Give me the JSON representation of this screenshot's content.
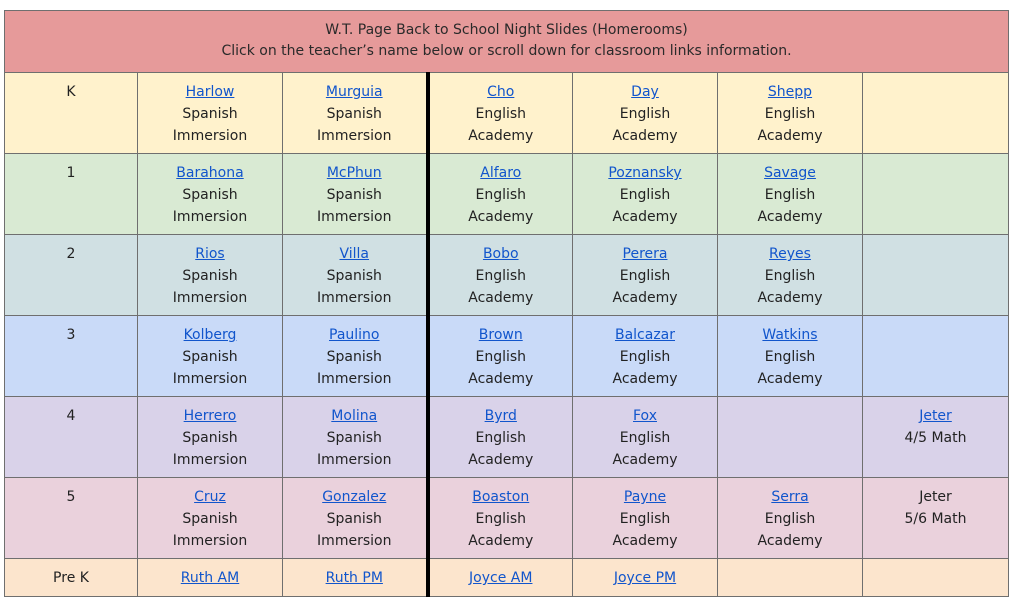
{
  "header": {
    "title": "W.T. Page Back to School Night Slides (Homerooms)",
    "subtitle": "Click on the teacher’s name below or scroll down for classroom links information."
  },
  "rows": [
    {
      "grade": "K",
      "cells": [
        {
          "name": "Harlow",
          "l1": "Spanish",
          "l2": "Immersion"
        },
        {
          "name": "Murguia",
          "l1": "Spanish",
          "l2": "Immersion"
        },
        {
          "name": "Cho",
          "l1": "English",
          "l2": "Academy"
        },
        {
          "name": "Day",
          "l1": "English",
          "l2": "Academy"
        },
        {
          "name": "Shepp",
          "l1": "English",
          "l2": "Academy"
        },
        {
          "name": "",
          "l1": "",
          "l2": ""
        }
      ]
    },
    {
      "grade": "1",
      "cells": [
        {
          "name": "Barahona",
          "l1": "Spanish",
          "l2": "Immersion"
        },
        {
          "name": "McPhun",
          "l1": "Spanish",
          "l2": "Immersion"
        },
        {
          "name": "Alfaro",
          "l1": "English",
          "l2": "Academy"
        },
        {
          "name": "Poznansky",
          "l1": "English",
          "l2": "Academy"
        },
        {
          "name": "Savage",
          "l1": "English",
          "l2": "Academy"
        },
        {
          "name": "",
          "l1": "",
          "l2": ""
        }
      ]
    },
    {
      "grade": "2",
      "cells": [
        {
          "name": "Rios",
          "l1": "Spanish",
          "l2": "Immersion"
        },
        {
          "name": "Villa",
          "l1": "Spanish",
          "l2": "Immersion"
        },
        {
          "name": "Bobo",
          "l1": "English",
          "l2": "Academy"
        },
        {
          "name": "Perera",
          "l1": "English",
          "l2": "Academy"
        },
        {
          "name": "Reyes",
          "l1": "English",
          "l2": "Academy"
        },
        {
          "name": "",
          "l1": "",
          "l2": ""
        }
      ]
    },
    {
      "grade": "3",
      "cells": [
        {
          "name": "Kolberg",
          "l1": "Spanish",
          "l2": "Immersion"
        },
        {
          "name": "Paulino",
          "l1": "Spanish",
          "l2": "Immersion"
        },
        {
          "name": "Brown",
          "l1": "English",
          "l2": "Academy"
        },
        {
          "name": "Balcazar",
          "l1": "English",
          "l2": "Academy"
        },
        {
          "name": "Watkins",
          "l1": "English",
          "l2": "Academy"
        },
        {
          "name": "",
          "l1": "",
          "l2": ""
        }
      ]
    },
    {
      "grade": "4",
      "cells": [
        {
          "name": "Herrero",
          "l1": "Spanish",
          "l2": "Immersion"
        },
        {
          "name": "Molina",
          "l1": "Spanish",
          "l2": "Immersion"
        },
        {
          "name": "Byrd",
          "l1": "English",
          "l2": "Academy"
        },
        {
          "name": "Fox",
          "l1": "English",
          "l2": "Academy"
        },
        {
          "name": "",
          "l1": "",
          "l2": ""
        },
        {
          "name": "Jeter",
          "l1": "4/5 Math",
          "l2": ""
        }
      ]
    },
    {
      "grade": "5",
      "cells": [
        {
          "name": "Cruz",
          "l1": "Spanish",
          "l2": "Immersion"
        },
        {
          "name": "Gonzalez",
          "l1": "Spanish",
          "l2": "Immersion"
        },
        {
          "name": "Boaston",
          "l1": "English",
          "l2": "Academy"
        },
        {
          "name": "Payne",
          "l1": "English",
          "l2": "Academy"
        },
        {
          "name": "Serra",
          "l1": "English",
          "l2": "Academy"
        },
        {
          "name": "Jeter",
          "l1": "5/6 Math",
          "l2": ""
        }
      ]
    }
  ],
  "prek": {
    "grade": "Pre K",
    "links": [
      "Ruth AM",
      "Ruth PM",
      "Joyce AM",
      "Joyce PM"
    ]
  },
  "colors": {
    "header": "#e69a9a",
    "k": "#fff2cc",
    "g1": "#d9ead3",
    "g2": "#d0e0e3",
    "g3": "#c9daf8",
    "g4": "#d9d2e9",
    "g5": "#ead1dc",
    "prek": "#fce5cd",
    "link": "#1155cc"
  }
}
